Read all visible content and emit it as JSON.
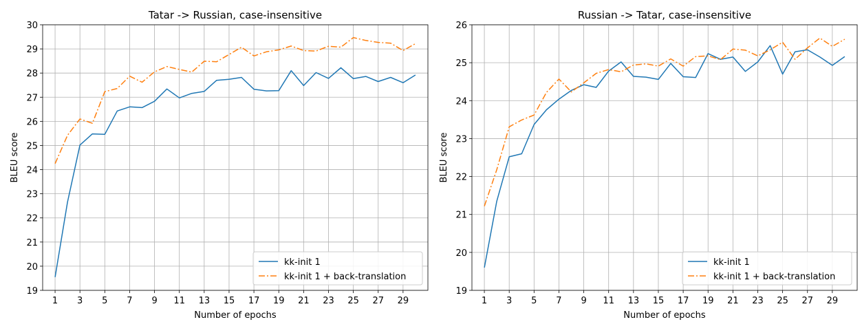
{
  "chart_data": [
    {
      "type": "line",
      "title": "Tatar -> Russian, case-insensitive",
      "xlabel": "Number of epochs",
      "ylabel": "BLEU score",
      "xlim": [
        0,
        31
      ],
      "ylim": [
        19,
        30
      ],
      "xticks": [
        1,
        3,
        5,
        7,
        9,
        11,
        13,
        15,
        17,
        19,
        21,
        23,
        25,
        27,
        29
      ],
      "yticks": [
        19,
        20,
        21,
        22,
        23,
        24,
        25,
        26,
        27,
        28,
        29,
        30
      ],
      "grid": true,
      "legend_position": "lower-right",
      "x": [
        1,
        2,
        3,
        4,
        5,
        6,
        7,
        8,
        9,
        10,
        11,
        12,
        13,
        14,
        15,
        16,
        17,
        18,
        19,
        20,
        21,
        22,
        23,
        24,
        25,
        26,
        27,
        28,
        29,
        30
      ],
      "series": [
        {
          "name": "kk-init 1",
          "color": "#1f77b4",
          "style": "solid",
          "values": [
            19.55,
            22.65,
            25.02,
            25.48,
            25.46,
            26.43,
            26.6,
            26.57,
            26.83,
            27.34,
            26.97,
            27.16,
            27.24,
            27.7,
            27.74,
            27.82,
            27.33,
            27.26,
            27.27,
            28.1,
            27.48,
            28.02,
            27.78,
            28.22,
            27.77,
            27.86,
            27.65,
            27.82,
            27.6,
            27.92
          ]
        },
        {
          "name": "kk-init 1 + back-translation",
          "color": "#ff7f0e",
          "style": "dashdot",
          "values": [
            24.25,
            25.42,
            26.1,
            25.92,
            27.23,
            27.36,
            27.87,
            27.62,
            28.05,
            28.27,
            28.15,
            28.04,
            28.49,
            28.47,
            28.77,
            29.07,
            28.71,
            28.88,
            28.96,
            29.12,
            28.93,
            28.91,
            29.11,
            29.07,
            29.47,
            29.35,
            29.27,
            29.24,
            28.93,
            29.22
          ]
        }
      ]
    },
    {
      "type": "line",
      "title": "Russian -> Tatar, case-insensitive",
      "xlabel": "Number of epochs",
      "ylabel": "BLEU score",
      "xlim": [
        0,
        31
      ],
      "ylim": [
        19,
        26
      ],
      "xticks": [
        1,
        3,
        5,
        7,
        9,
        11,
        13,
        15,
        17,
        19,
        21,
        23,
        25,
        27,
        29
      ],
      "yticks": [
        19,
        20,
        21,
        22,
        23,
        24,
        25,
        26
      ],
      "grid": true,
      "legend_position": "lower-right",
      "x": [
        1,
        2,
        3,
        4,
        5,
        6,
        7,
        8,
        9,
        10,
        11,
        12,
        13,
        14,
        15,
        16,
        17,
        18,
        19,
        20,
        21,
        22,
        23,
        24,
        25,
        26,
        27,
        28,
        29,
        30
      ],
      "series": [
        {
          "name": "kk-init 1",
          "color": "#1f77b4",
          "style": "solid",
          "values": [
            19.6,
            21.35,
            22.52,
            22.6,
            23.37,
            23.76,
            24.04,
            24.27,
            24.42,
            24.35,
            24.78,
            25.02,
            24.64,
            24.62,
            24.56,
            24.98,
            24.63,
            24.61,
            25.24,
            25.09,
            25.15,
            24.77,
            25.02,
            25.45,
            24.7,
            25.29,
            25.34,
            25.15,
            24.93,
            25.16
          ]
        },
        {
          "name": "kk-init 1 + back-translation",
          "color": "#ff7f0e",
          "style": "dashdot",
          "values": [
            21.22,
            22.18,
            23.31,
            23.49,
            23.62,
            24.22,
            24.57,
            24.23,
            24.47,
            24.72,
            24.82,
            24.76,
            24.94,
            24.97,
            24.91,
            25.1,
            24.91,
            25.16,
            25.18,
            25.08,
            25.36,
            25.33,
            25.18,
            25.34,
            25.54,
            25.09,
            25.39,
            25.65,
            25.43,
            25.62
          ]
        }
      ]
    }
  ]
}
